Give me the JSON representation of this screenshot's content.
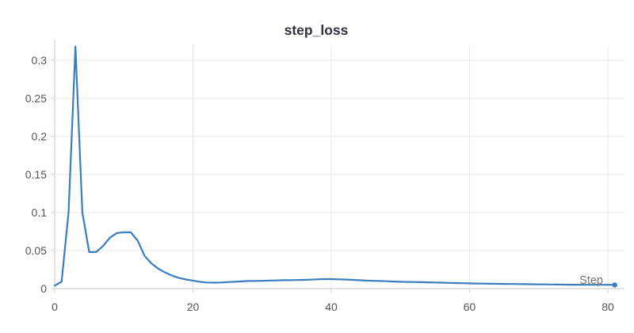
{
  "chart_data": {
    "type": "line",
    "title": "step_loss",
    "xlabel": "Step",
    "ylabel": "",
    "x_ticks": [
      0,
      20,
      40,
      60,
      80
    ],
    "y_ticks": [
      0,
      0.05,
      0.1,
      0.15,
      0.2,
      0.25,
      0.3
    ],
    "xlim": [
      0,
      82
    ],
    "ylim": [
      0,
      0.327
    ],
    "grid": true,
    "legend_position": "none",
    "end_point_marker": true,
    "series": [
      {
        "name": "step_loss",
        "x": [
          0,
          1,
          2,
          3,
          4,
          5,
          6,
          7,
          8,
          9,
          10,
          11,
          12,
          13,
          14,
          15,
          16,
          17,
          18,
          19,
          20,
          21,
          22,
          23,
          24,
          25,
          26,
          27,
          28,
          29,
          30,
          31,
          32,
          33,
          34,
          35,
          36,
          37,
          38,
          39,
          40,
          41,
          42,
          43,
          44,
          45,
          46,
          47,
          48,
          49,
          50,
          51,
          52,
          53,
          54,
          55,
          56,
          57,
          58,
          59,
          60,
          61,
          62,
          63,
          64,
          65,
          66,
          67,
          68,
          69,
          70,
          71,
          72,
          73,
          74,
          75,
          76,
          77,
          78,
          79,
          80,
          81
        ],
        "y": [
          0.004,
          0.009,
          0.1,
          0.318,
          0.1,
          0.048,
          0.048,
          0.056,
          0.067,
          0.073,
          0.074,
          0.074,
          0.063,
          0.043,
          0.033,
          0.026,
          0.021,
          0.017,
          0.014,
          0.012,
          0.0105,
          0.009,
          0.008,
          0.0078,
          0.008,
          0.0085,
          0.009,
          0.0095,
          0.01,
          0.01,
          0.0102,
          0.0105,
          0.0107,
          0.011,
          0.011,
          0.0113,
          0.0115,
          0.0118,
          0.0122,
          0.0125,
          0.0125,
          0.0122,
          0.012,
          0.0115,
          0.011,
          0.0105,
          0.0102,
          0.01,
          0.0097,
          0.0093,
          0.009,
          0.0088,
          0.0086,
          0.0084,
          0.0082,
          0.008,
          0.0078,
          0.0075,
          0.0073,
          0.0071,
          0.0069,
          0.0067,
          0.0066,
          0.0064,
          0.0062,
          0.0061,
          0.006,
          0.0059,
          0.0058,
          0.0057,
          0.0056,
          0.0055,
          0.0054,
          0.0053,
          0.0052,
          0.0051,
          0.0051,
          0.005,
          0.005,
          0.005,
          0.005,
          0.0048
        ]
      }
    ]
  },
  "colors": {
    "line": "#3b7dbf",
    "title": "#31333f",
    "tick_label": "#555555",
    "axis_title": "#777777",
    "grid": "#e9e9e9",
    "axis": "#d2d2d2",
    "background": "#ffffff"
  }
}
